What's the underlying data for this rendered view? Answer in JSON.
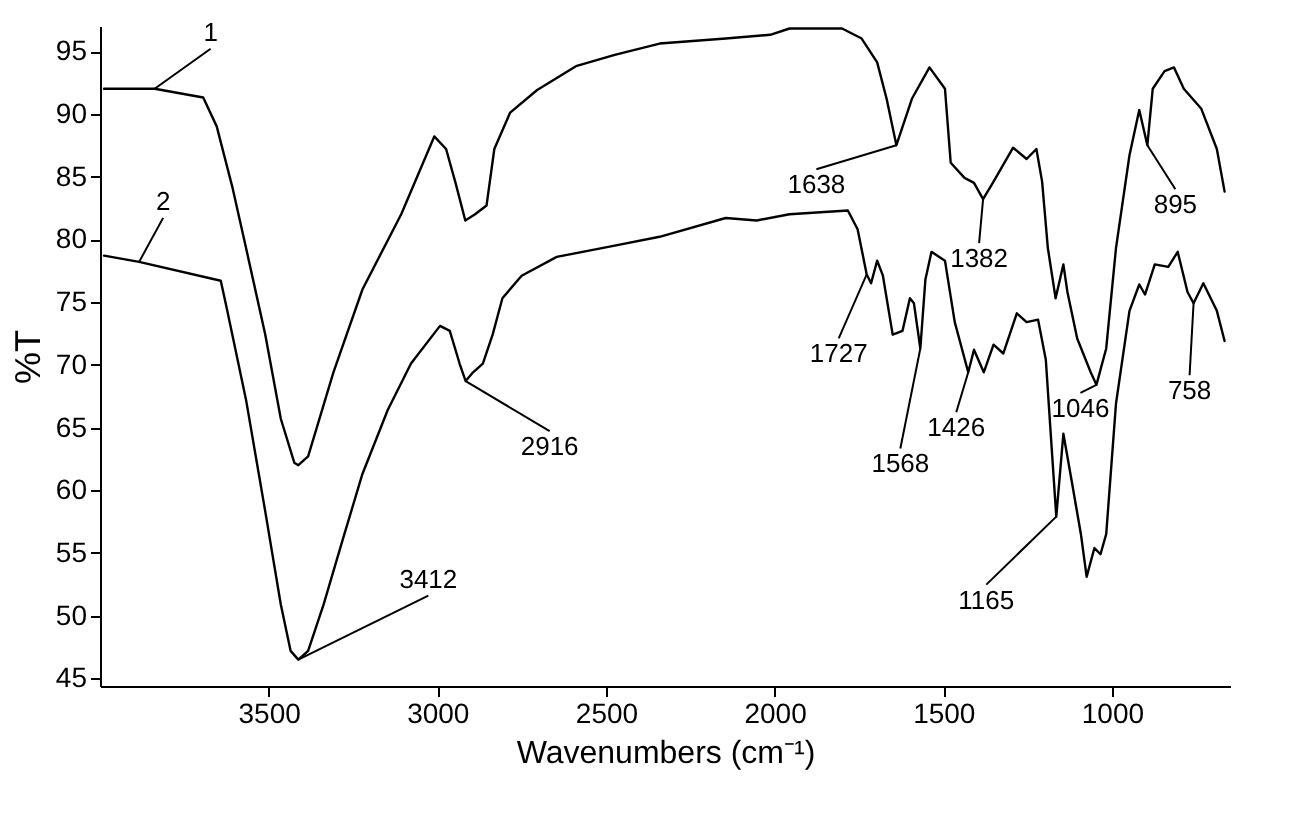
{
  "chart_data": {
    "type": "line",
    "xlabel": "Wavenumbers (cm⁻¹)",
    "ylabel": "%T",
    "xlim": [
      4000,
      650
    ],
    "ylim": [
      44.4,
      97
    ],
    "xticks": [
      3500,
      3000,
      2500,
      2000,
      1500,
      1000
    ],
    "yticks": [
      45,
      50,
      55,
      60,
      65,
      70,
      75,
      80,
      85,
      90,
      95
    ],
    "grid": false,
    "legend": false,
    "marker": "none",
    "line_style": "solid",
    "series": [
      {
        "name": "1",
        "color": "#000000",
        "x": [
          3988,
          3838,
          3694,
          3654,
          3608,
          3567,
          3510,
          3464,
          3424,
          3412,
          3383,
          3308,
          3222,
          3107,
          3009,
          2974,
          2946,
          2917,
          2888,
          2854,
          2831,
          2784,
          2704,
          2589,
          2474,
          2341,
          2145,
          2013,
          1956,
          1800,
          1742,
          1696,
          1668,
          1639,
          1593,
          1541,
          1495,
          1478,
          1437,
          1409,
          1382,
          1351,
          1293,
          1253,
          1224,
          1207,
          1190,
          1167,
          1144,
          1132,
          1103,
          1063,
          1046,
          1017,
          988,
          948,
          919,
          895,
          879,
          844,
          816,
          787,
          735,
          689,
          666
        ],
        "values": [
          92,
          92,
          91.3,
          89,
          84.2,
          79.3,
          72.4,
          65.7,
          62.2,
          62,
          62.7,
          69.4,
          76,
          82,
          88.2,
          87.2,
          84.5,
          81.5,
          82,
          82.7,
          87.2,
          90.1,
          91.9,
          93.8,
          94.7,
          95.6,
          96,
          96.3,
          96.8,
          96.8,
          96,
          94.1,
          91.2,
          87.5,
          91.2,
          93.7,
          92,
          86.1,
          84.9,
          84.5,
          83.2,
          84.6,
          87.3,
          86.4,
          87.2,
          84.6,
          79.3,
          75.3,
          78,
          75.8,
          72.1,
          69.4,
          68.4,
          71.3,
          79.3,
          86.7,
          90.3,
          87.5,
          92,
          93.4,
          93.7,
          92,
          90.4,
          87.2,
          83.8
        ]
      },
      {
        "name": "2",
        "color": "#000000",
        "x": [
          3988,
          3884,
          3642,
          3625,
          3567,
          3510,
          3464,
          3435,
          3412,
          3383,
          3337,
          3280,
          3222,
          3147,
          3078,
          2992,
          2963,
          2934,
          2916,
          2894,
          2865,
          2836,
          2807,
          2750,
          2646,
          2474,
          2341,
          2145,
          2053,
          1956,
          1783,
          1754,
          1727,
          1714,
          1696,
          1679,
          1650,
          1621,
          1599,
          1587,
          1568,
          1553,
          1535,
          1495,
          1466,
          1426,
          1409,
          1380,
          1351,
          1322,
          1282,
          1253,
          1219,
          1196,
          1179,
          1165,
          1144,
          1121,
          1092,
          1075,
          1052,
          1034,
          1017,
          988,
          948,
          919,
          902,
          873,
          833,
          805,
          776,
          758,
          729,
          689,
          666
        ],
        "values": [
          78.7,
          78.2,
          76.7,
          74.6,
          67.2,
          58.3,
          50.9,
          47.2,
          46.5,
          47.2,
          50.9,
          56.1,
          61.3,
          66.4,
          70.1,
          73.1,
          72.7,
          70.1,
          68.7,
          69.4,
          70.1,
          72.4,
          75.3,
          77.1,
          78.6,
          79.5,
          80.2,
          81.7,
          81.5,
          82,
          82.3,
          80.8,
          77.2,
          76.5,
          78.3,
          77.1,
          72.4,
          72.7,
          75.3,
          74.9,
          71.3,
          76.8,
          79,
          78.3,
          73.4,
          69.4,
          71.2,
          69.4,
          71.6,
          70.9,
          74.1,
          73.4,
          73.6,
          70.4,
          63.5,
          57.9,
          64.5,
          61,
          56.5,
          53.1,
          55.4,
          54.9,
          56.5,
          66.9,
          74.3,
          76.4,
          75.6,
          78,
          77.8,
          79,
          75.8,
          74.9,
          76.5,
          74.3,
          71.9
        ]
      }
    ],
    "annotations": [
      {
        "text": "3412",
        "x": 3412,
        "y": 46.5
      },
      {
        "text": "2916",
        "x": 2916,
        "y": 68.7
      },
      {
        "text": "1638",
        "x": 1639,
        "y": 87.5
      },
      {
        "text": "1382",
        "x": 1382,
        "y": 83.2
      },
      {
        "text": "1727",
        "x": 1727,
        "y": 77.2
      },
      {
        "text": "1568",
        "x": 1568,
        "y": 71.3
      },
      {
        "text": "1426",
        "x": 1426,
        "y": 69.4
      },
      {
        "text": "1165",
        "x": 1165,
        "y": 57.9
      },
      {
        "text": "1046",
        "x": 1046,
        "y": 68.4
      },
      {
        "text": "895",
        "x": 895,
        "y": 87.5
      },
      {
        "text": "758",
        "x": 758,
        "y": 74.9
      }
    ]
  }
}
